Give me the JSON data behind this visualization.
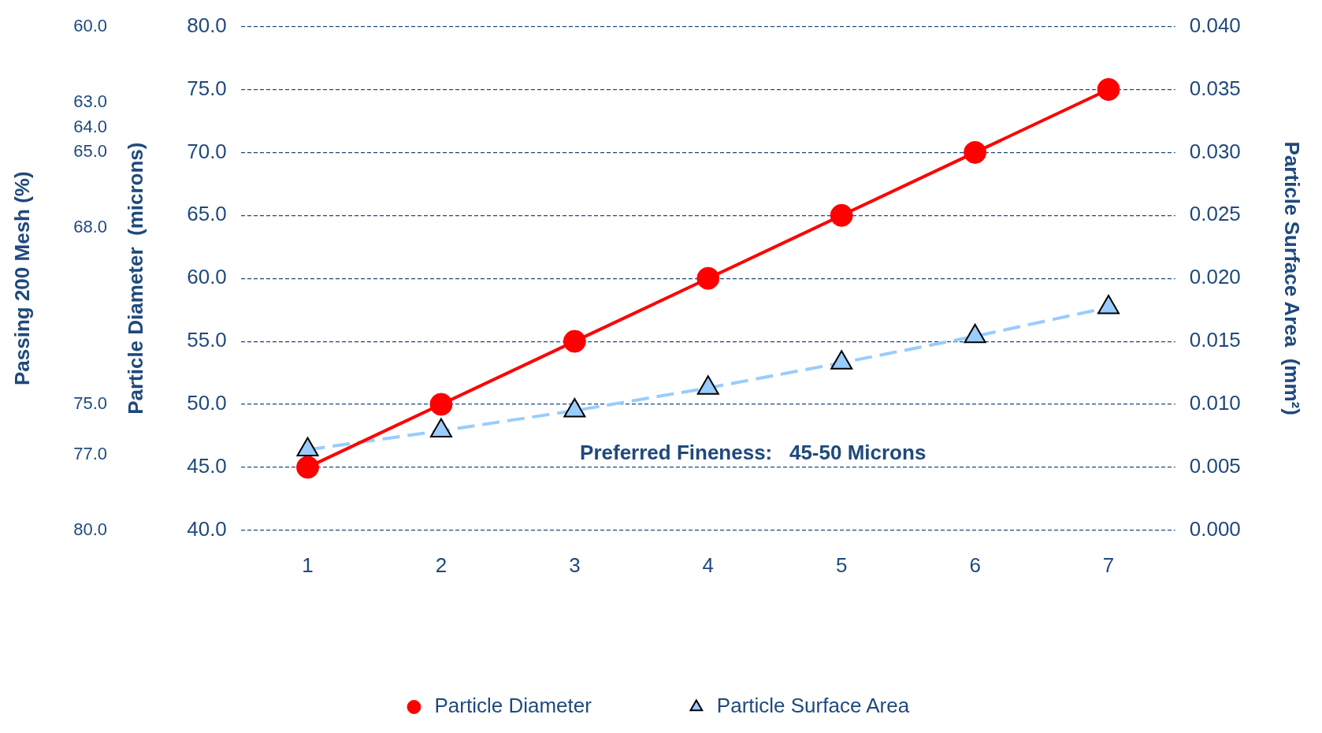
{
  "chart_data": {
    "type": "line",
    "categories": [
      "1",
      "2",
      "3",
      "4",
      "5",
      "6",
      "7"
    ],
    "ylabel": "Particle Diameter  (microns)",
    "y2label": "Particle Surface Area  (mm²)",
    "y3label": "Passing 200 Mesh (%)",
    "series": [
      {
        "name": "Particle Diameter",
        "color": "#ff0000",
        "values": [
          45,
          50,
          55,
          60,
          65,
          70,
          75
        ],
        "marker": "circle",
        "line_style": "solid"
      },
      {
        "name": "Particle Surface Area",
        "color": "#99ccff",
        "values": [
          0.0064,
          0.0079,
          0.0095,
          0.0113,
          0.0133,
          0.0154,
          0.0177
        ],
        "axis": "y2",
        "marker": "triangle",
        "line_style": "dashed"
      }
    ],
    "ylim": [
      40,
      80
    ],
    "yticks": [
      {
        "value": 40,
        "label": "40.0"
      },
      {
        "value": 45,
        "label": "45.0"
      },
      {
        "value": 50,
        "label": "50.0"
      },
      {
        "value": 55,
        "label": "55.0"
      },
      {
        "value": 60,
        "label": "60.0"
      },
      {
        "value": 65,
        "label": "65.0"
      },
      {
        "value": 70,
        "label": "70.0"
      },
      {
        "value": 75,
        "label": "75.0"
      },
      {
        "value": 80,
        "label": "80.0"
      }
    ],
    "y2lim": [
      0,
      0.04
    ],
    "y2ticks": [
      {
        "value": 0,
        "label": "0.000"
      },
      {
        "value": 0.005,
        "label": "0.005"
      },
      {
        "value": 0.01,
        "label": "0.010"
      },
      {
        "value": 0.015,
        "label": "0.015"
      },
      {
        "value": 0.02,
        "label": "0.020"
      },
      {
        "value": 0.025,
        "label": "0.025"
      },
      {
        "value": 0.03,
        "label": "0.030"
      },
      {
        "value": 0.035,
        "label": "0.035"
      },
      {
        "value": 0.04,
        "label": "0.040"
      }
    ],
    "y3lim": [
      80,
      60
    ],
    "y3ticks": [
      {
        "value": 60,
        "label": "60.0"
      },
      {
        "value": 63,
        "label": "63.0"
      },
      {
        "value": 64,
        "label": "64.0"
      },
      {
        "value": 65,
        "label": "65.0"
      },
      {
        "value": 68,
        "label": "68.0"
      },
      {
        "value": 75,
        "label": "75.0"
      },
      {
        "value": 77,
        "label": "77.0"
      },
      {
        "value": 80,
        "label": "80.0"
      }
    ],
    "annotations": [
      "Preferred Fineness:   45-50 Microns"
    ],
    "grid": "y",
    "legend": "bottom"
  }
}
